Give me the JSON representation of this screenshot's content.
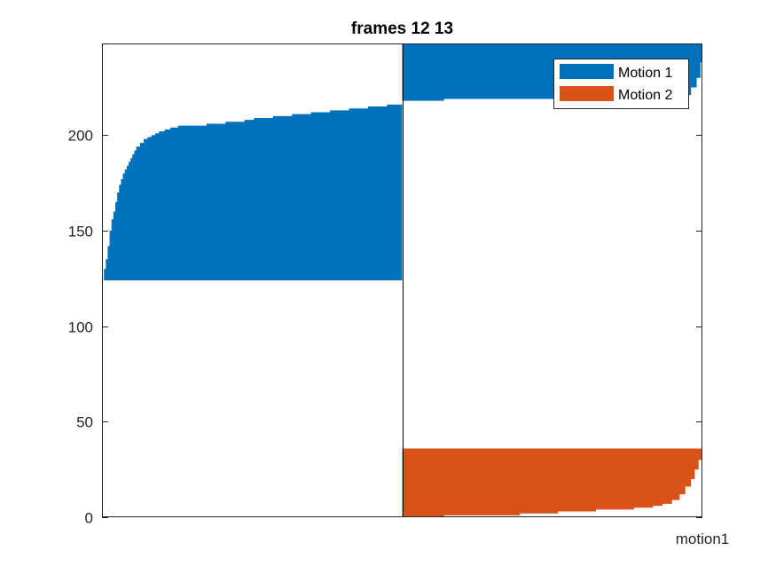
{
  "chart_data": {
    "type": "area",
    "title": "frames 12 13",
    "xlabel": "",
    "ylabel": "",
    "xlim": [
      0,
      316
    ],
    "ylim": [
      0,
      248
    ],
    "yticks": [
      0,
      50,
      100,
      150,
      200
    ],
    "xtick_labels": [
      "motion1"
    ],
    "grid": false,
    "legend": {
      "placement": "top-right",
      "entries": [
        "Motion 1",
        "Motion 2"
      ]
    },
    "colors": {
      "Motion 1": "#0072BD",
      "Motion 2": "#D95319"
    },
    "series": [
      {
        "name": "Motion 1",
        "color": "#0072BD",
        "segments": [
          {
            "x": [
              0,
              1,
              2,
              3,
              4,
              5,
              6,
              7,
              8,
              9,
              10,
              11,
              12,
              13,
              14,
              15,
              16,
              17,
              18,
              20,
              22,
              24,
              26,
              28,
              30,
              33,
              36,
              40,
              45,
              50,
              55,
              65,
              75,
              80,
              90,
              100,
              110,
              120,
              130,
              140,
              150,
              155,
              158
            ],
            "top": [
              124,
              130,
              135,
              142,
              150,
              156,
              160,
              165,
              170,
              174,
              177,
              180,
              182,
              184,
              186,
              188,
              190,
              192,
              194,
              196,
              198,
              199,
              200,
              201,
              202,
              203,
              204,
              205,
              205,
              205,
              206,
              207,
              208,
              209,
              210,
              211,
              212,
              213,
              214,
              215,
              216,
              216,
              218
            ],
            "bottom": [
              124,
              124,
              124,
              124,
              124,
              124,
              124,
              124,
              124,
              124,
              124,
              124,
              124,
              124,
              124,
              124,
              124,
              124,
              124,
              124,
              124,
              124,
              124,
              124,
              124,
              124,
              124,
              124,
              124,
              124,
              124,
              124,
              124,
              124,
              124,
              124,
              124,
              124,
              124,
              124,
              124,
              124,
              124
            ]
          },
          {
            "x": [
              158,
              160,
              170,
              180,
              200,
              220,
              240,
              260,
              280,
              300,
              310,
              313,
              315,
              316
            ],
            "top": [
              248,
              248,
              248,
              248,
              248,
              248,
              248,
              248,
              248,
              248,
              248,
              248,
              248,
              248
            ],
            "bottom": [
              217,
              218,
              218,
              218,
              219,
              219,
              219,
              219,
              219,
              219,
              221,
              225,
              230,
              238
            ]
          }
        ]
      },
      {
        "name": "Motion 2",
        "color": "#D95319",
        "segments": [
          {
            "x": [
              158,
              170,
              180,
              200,
              220,
              240,
              260,
              280,
              290,
              295,
              300,
              304,
              307,
              310,
              312,
              314,
              316
            ],
            "top": [
              36,
              36,
              36,
              36,
              36,
              36,
              36,
              36,
              36,
              36,
              36,
              36,
              36,
              36,
              36,
              36,
              36
            ],
            "bottom": [
              0,
              0,
              0,
              1,
              1,
              2,
              3,
              4,
              5,
              6,
              7,
              9,
              12,
              16,
              20,
              25,
              30
            ]
          }
        ]
      }
    ]
  }
}
